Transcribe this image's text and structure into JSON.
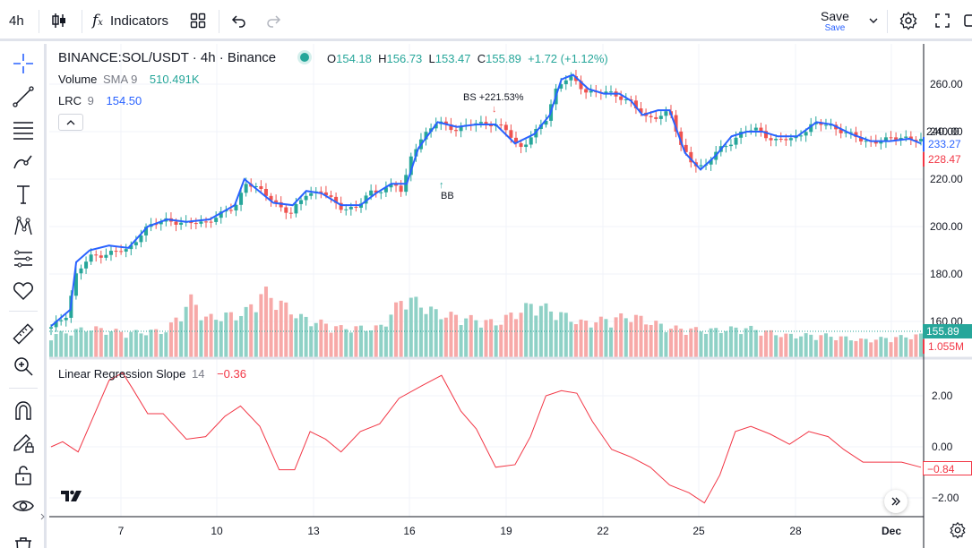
{
  "toolbar": {
    "interval": "4h",
    "indicators_label": "Indicators",
    "save_label": "Save",
    "save_sub": "Save"
  },
  "symbol": {
    "title": "BINANCE:SOL/USDT · 4h · Binance",
    "o_label": "O",
    "open": "154.18",
    "h_label": "H",
    "high": "156.73",
    "l_label": "L",
    "low": "153.47",
    "c_label": "C",
    "close": "155.89",
    "change": "+1.72 (+1.12%)"
  },
  "indicators": {
    "volume": {
      "name": "Volume",
      "params": "SMA 9",
      "value": "510.491K"
    },
    "lrc": {
      "name": "LRC",
      "params": "9",
      "value": "154.50"
    },
    "slope": {
      "name": "Linear Regression Slope",
      "params": "14",
      "value": "−0.36"
    }
  },
  "annotations": {
    "bs": "BS +221.53%",
    "bb": "BB"
  },
  "price_axis": {
    "ticks": [
      "260.00",
      "240.00",
      "220.00",
      "200.00",
      "180.00",
      "160.00"
    ],
    "labels": {
      "blue_top": "240.00",
      "blue_value": "233.27",
      "red_value": "228.47",
      "last_price": "155.89",
      "volume": "1.055M"
    }
  },
  "slope_axis": {
    "ticks": [
      "2.00",
      "0.00",
      "−2.00"
    ],
    "current": "−0.84"
  },
  "time_axis": {
    "ticks": [
      "7",
      "10",
      "13",
      "16",
      "19",
      "22",
      "25",
      "28",
      "Dec"
    ]
  },
  "colors": {
    "up": "#26a69a",
    "down": "#ef5350",
    "vol_up": "#8fd1c6",
    "vol_down": "#f7a9a8",
    "lrc": "#2962ff",
    "slope": "#f23645",
    "accent": "#2962ff"
  },
  "chart_data": {
    "type": "line",
    "title": "BINANCE:SOL/USDT · 4h · Binance",
    "price_range": [
      150,
      270
    ],
    "price_polyline": [
      [
        0,
        157
      ],
      [
        8,
        163
      ],
      [
        13,
        180
      ],
      [
        20,
        187
      ],
      [
        30,
        189
      ],
      [
        40,
        190
      ],
      [
        48,
        199
      ],
      [
        60,
        203
      ],
      [
        70,
        201
      ],
      [
        80,
        202
      ],
      [
        95,
        208
      ],
      [
        101,
        219
      ],
      [
        108,
        215
      ],
      [
        115,
        211
      ],
      [
        124,
        205
      ],
      [
        132,
        214
      ],
      [
        140,
        215
      ],
      [
        149,
        208
      ],
      [
        158,
        208
      ],
      [
        165,
        214
      ],
      [
        172,
        216
      ],
      [
        178,
        218
      ],
      [
        183,
        212
      ],
      [
        184,
        226
      ],
      [
        190,
        236
      ],
      [
        200,
        244
      ],
      [
        210,
        241
      ],
      [
        218,
        243
      ],
      [
        226,
        244
      ],
      [
        235,
        241
      ],
      [
        242,
        233
      ],
      [
        250,
        239
      ],
      [
        256,
        245
      ],
      [
        262,
        260
      ],
      [
        268,
        263
      ],
      [
        276,
        257
      ],
      [
        284,
        257
      ],
      [
        292,
        255
      ],
      [
        300,
        253
      ],
      [
        308,
        245
      ],
      [
        315,
        247
      ],
      [
        320,
        249
      ],
      [
        326,
        233
      ],
      [
        332,
        227
      ],
      [
        338,
        225
      ],
      [
        345,
        232
      ],
      [
        352,
        236
      ],
      [
        358,
        240
      ],
      [
        366,
        241
      ],
      [
        374,
        236
      ],
      [
        384,
        237
      ],
      [
        394,
        243
      ],
      [
        402,
        243
      ],
      [
        410,
        240
      ],
      [
        420,
        236
      ],
      [
        430,
        236
      ],
      [
        441,
        238
      ],
      [
        450,
        236
      ]
    ],
    "volume_polyline": [
      [
        0,
        0.45
      ],
      [
        20,
        0.6
      ],
      [
        40,
        0.5
      ],
      [
        60,
        0.55
      ],
      [
        73,
        1.2
      ],
      [
        80,
        0.8
      ],
      [
        100,
        0.9
      ],
      [
        110,
        1.35
      ],
      [
        130,
        0.8
      ],
      [
        150,
        0.6
      ],
      [
        170,
        0.6
      ],
      [
        183,
        1.25
      ],
      [
        200,
        0.9
      ],
      [
        230,
        0.7
      ],
      [
        250,
        1.1
      ],
      [
        275,
        0.7
      ],
      [
        300,
        0.85
      ],
      [
        320,
        0.6
      ],
      [
        340,
        0.55
      ],
      [
        360,
        0.6
      ],
      [
        380,
        0.45
      ],
      [
        400,
        0.45
      ],
      [
        420,
        0.35
      ],
      [
        450,
        0.45
      ]
    ],
    "slope_polyline": [
      [
        0,
        0
      ],
      [
        6,
        0.2
      ],
      [
        14,
        -0.2
      ],
      [
        22,
        1.2
      ],
      [
        30,
        2.6
      ],
      [
        37,
        2.9
      ],
      [
        42,
        2.3
      ],
      [
        50,
        1.3
      ],
      [
        58,
        1.3
      ],
      [
        70,
        0.3
      ],
      [
        80,
        0.4
      ],
      [
        90,
        1.2
      ],
      [
        98,
        1.6
      ],
      [
        108,
        0.8
      ],
      [
        118,
        -0.9
      ],
      [
        126,
        -0.9
      ],
      [
        134,
        0.6
      ],
      [
        142,
        0.3
      ],
      [
        150,
        -0.2
      ],
      [
        160,
        0.6
      ],
      [
        170,
        0.9
      ],
      [
        180,
        1.9
      ],
      [
        192,
        2.4
      ],
      [
        202,
        2.8
      ],
      [
        212,
        1.4
      ],
      [
        220,
        0.7
      ],
      [
        230,
        -0.8
      ],
      [
        240,
        -0.7
      ],
      [
        248,
        0.4
      ],
      [
        256,
        2.0
      ],
      [
        264,
        2.2
      ],
      [
        272,
        2.1
      ],
      [
        280,
        1.0
      ],
      [
        290,
        -0.1
      ],
      [
        300,
        -0.4
      ],
      [
        310,
        -0.8
      ],
      [
        320,
        -1.5
      ],
      [
        330,
        -1.8
      ],
      [
        338,
        -2.2
      ],
      [
        346,
        -1.1
      ],
      [
        354,
        0.6
      ],
      [
        362,
        0.8
      ],
      [
        372,
        0.5
      ],
      [
        382,
        0.1
      ],
      [
        392,
        0.6
      ],
      [
        402,
        0.4
      ],
      [
        410,
        -0.1
      ],
      [
        420,
        -0.6
      ],
      [
        430,
        -0.6
      ],
      [
        440,
        -0.6
      ],
      [
        450,
        -0.8
      ]
    ],
    "lrc_polyline": [
      [
        0,
        158
      ],
      [
        10,
        165
      ],
      [
        13,
        185
      ],
      [
        20,
        190
      ],
      [
        30,
        192
      ],
      [
        40,
        191
      ],
      [
        50,
        200
      ],
      [
        60,
        203
      ],
      [
        70,
        202
      ],
      [
        82,
        203
      ],
      [
        95,
        209
      ],
      [
        100,
        220
      ],
      [
        106,
        216
      ],
      [
        115,
        210
      ],
      [
        125,
        209
      ],
      [
        132,
        215
      ],
      [
        140,
        214
      ],
      [
        150,
        209
      ],
      [
        160,
        209
      ],
      [
        168,
        214
      ],
      [
        176,
        218
      ],
      [
        184,
        218
      ],
      [
        190,
        233
      ],
      [
        200,
        244
      ],
      [
        210,
        242
      ],
      [
        220,
        243
      ],
      [
        230,
        243
      ],
      [
        240,
        235
      ],
      [
        250,
        239
      ],
      [
        258,
        247
      ],
      [
        264,
        262
      ],
      [
        270,
        264
      ],
      [
        278,
        258
      ],
      [
        286,
        256
      ],
      [
        294,
        256
      ],
      [
        300,
        253
      ],
      [
        306,
        247
      ],
      [
        314,
        249
      ],
      [
        320,
        249
      ],
      [
        328,
        231
      ],
      [
        336,
        224
      ],
      [
        344,
        230
      ],
      [
        352,
        238
      ],
      [
        360,
        240
      ],
      [
        368,
        240
      ],
      [
        376,
        238
      ],
      [
        386,
        238
      ],
      [
        396,
        244
      ],
      [
        404,
        243
      ],
      [
        414,
        239
      ],
      [
        424,
        236
      ],
      [
        434,
        236
      ],
      [
        444,
        237
      ],
      [
        450,
        235
      ]
    ],
    "x_range": [
      0,
      450
    ]
  }
}
